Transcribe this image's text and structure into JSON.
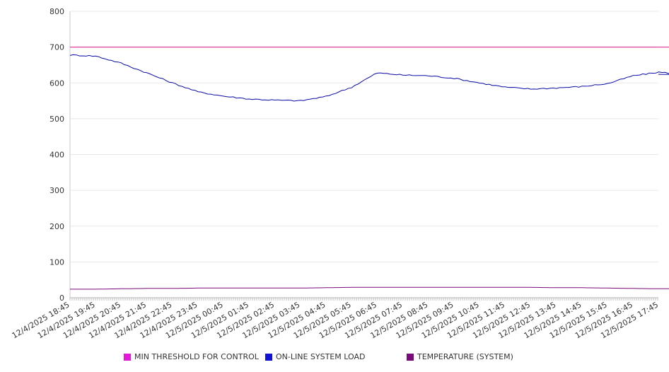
{
  "chart_data": {
    "type": "line",
    "title": "",
    "xlabel": "",
    "ylabel": "",
    "ylim": [
      0,
      800
    ],
    "y_ticks": [
      0,
      100,
      200,
      300,
      400,
      500,
      600,
      700,
      800
    ],
    "x_tick_labels": [
      "12/4/2025 18:45",
      "12/4/2025 19:45",
      "12/4/2025 20:45",
      "12/4/2025 21:45",
      "12/4/2025 22:45",
      "12/4/2025 23:45",
      "12/5/2025 00:45",
      "12/5/2025 01:45",
      "12/5/2025 02:45",
      "12/5/2025 03:45",
      "12/5/2025 04:45",
      "12/5/2025 05:45",
      "12/5/2025 06:45",
      "12/5/2025 07:45",
      "12/5/2025 08:45",
      "12/5/2025 09:45",
      "12/5/2025 10:45",
      "12/5/2025 11:45",
      "12/5/2025 12:45",
      "12/5/2025 13:45",
      "12/5/2025 14:45",
      "12/5/2025 15:45",
      "12/5/2025 16:45",
      "12/5/2025 17:45"
    ],
    "grid": "horizontal",
    "legend_position": "bottom",
    "series": [
      {
        "name": "MIN THRESHOLD FOR CONTROL",
        "color": "#e0168e",
        "values": [
          700,
          700,
          700,
          700,
          700,
          700,
          700,
          700,
          700,
          700,
          700,
          700,
          700,
          700,
          700,
          700,
          700,
          700,
          700,
          700,
          700,
          700,
          700,
          700,
          700
        ]
      },
      {
        "name": "ON-LINE SYSTEM LOAD",
        "color": "#0a0aa8",
        "values": [
          678,
          675,
          655,
          628,
          600,
          575,
          563,
          555,
          552,
          550,
          562,
          588,
          628,
          622,
          620,
          613,
          600,
          588,
          583,
          586,
          590,
          598,
          620,
          630,
          624
        ]
      },
      {
        "name": "TEMPERATURE (SYSTEM)",
        "color": "#7a0a7a",
        "values": [
          24,
          24,
          25,
          26,
          26,
          27,
          27,
          27,
          27,
          27,
          28,
          29,
          29,
          29,
          29,
          29,
          29,
          29,
          29,
          28,
          28,
          27,
          26,
          25,
          25
        ]
      }
    ]
  }
}
